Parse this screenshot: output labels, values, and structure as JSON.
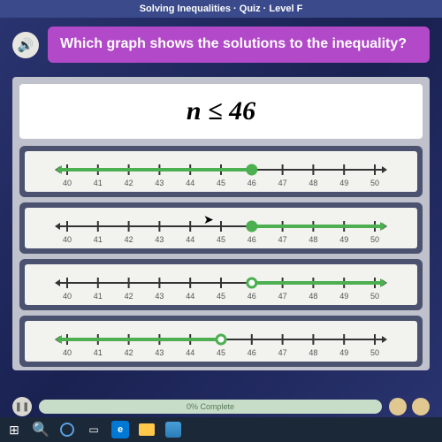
{
  "title": "Solving Inequalities · Quiz · Level F",
  "question": "Which graph shows the solutions to the inequality?",
  "inequality": "n ≤ 46",
  "progress_label": "0% Complete",
  "numberline": {
    "min": 40,
    "max": 50,
    "ticks": [
      40,
      41,
      42,
      43,
      44,
      45,
      46,
      47,
      48,
      49,
      50
    ],
    "axis_color": "#333333",
    "ray_color": "#4caf50",
    "bg_color": "#f2f2ee",
    "label_fontsize": 9
  },
  "options": [
    {
      "point": 46,
      "direction": "left",
      "filled": true
    },
    {
      "point": 46,
      "direction": "right",
      "filled": true
    },
    {
      "point": 46,
      "direction": "right",
      "filled": false
    },
    {
      "point": 45,
      "direction": "left",
      "filled": false
    }
  ],
  "colors": {
    "page_bg_a": "#2a3470",
    "page_bg_b": "#1a2252",
    "question_bg": "#b249c8",
    "content_bg": "#bfc2cc",
    "option_bg": "#4a5270"
  }
}
